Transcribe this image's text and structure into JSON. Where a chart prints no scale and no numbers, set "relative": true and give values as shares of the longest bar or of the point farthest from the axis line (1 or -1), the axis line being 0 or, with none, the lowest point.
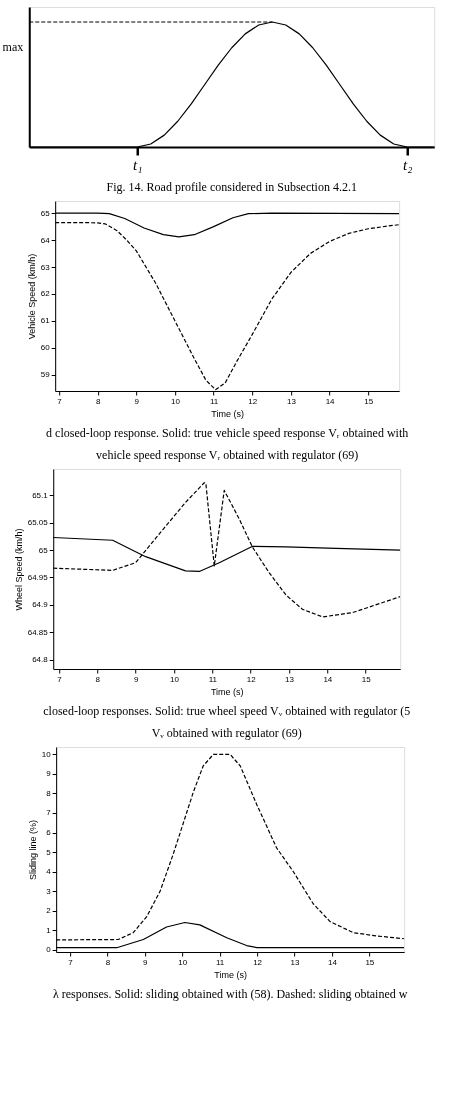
{
  "chart_data": [
    {
      "type": "line",
      "relative": true,
      "categories": [
        null,
        null,
        null,
        null,
        null,
        null,
        null,
        null,
        "t₁",
        null,
        null,
        null,
        null,
        null,
        null,
        null,
        null,
        null,
        null,
        null,
        null,
        null,
        null,
        null,
        null,
        null,
        null,
        null,
        "t₂",
        null,
        null
      ],
      "series": [
        {
          "color": "#000000",
          "line_style": "solid",
          "values": [
            0,
            0,
            0,
            0,
            0,
            0,
            0,
            0,
            0,
            0.024,
            0.095,
            0.206,
            0.345,
            0.5,
            0.655,
            0.794,
            0.905,
            0.976,
            1,
            0.976,
            0.905,
            0.794,
            0.655,
            0.5,
            0.345,
            0.206,
            0.095,
            0.024,
            0,
            0,
            0
          ]
        }
      ],
      "ref_lines": [
        {
          "axis": "y",
          "value": 1,
          "label": "max",
          "line_style": "dashed"
        }
      ],
      "annotations": [
        "Fig. 14. Road profile considered in Subsection 4.2.1"
      ],
      "grid": false
    },
    {
      "type": "line",
      "xlabel": "Time (s)",
      "ylabel": "Vehicle Speed (km/h)",
      "xlim": [
        6.9,
        15.8
      ],
      "ylim": [
        58.4,
        65.45
      ],
      "xticks": [
        7,
        8,
        9,
        10,
        11,
        12,
        13,
        14,
        15
      ],
      "yticks": [
        59,
        60,
        61,
        62,
        63,
        64,
        65
      ],
      "series": [
        {
          "color": "#000000",
          "line_style": "solid",
          "x": [
            6.9,
            8.0,
            8.3,
            8.7,
            9.2,
            9.7,
            10.1,
            10.5,
            11.0,
            11.5,
            11.9,
            12.5,
            15.8
          ],
          "values": [
            65.0,
            65.0,
            64.98,
            64.8,
            64.45,
            64.2,
            64.12,
            64.2,
            64.5,
            64.83,
            64.98,
            65.0,
            64.98
          ]
        },
        {
          "color": "#000000",
          "line_style": "dashed",
          "x": [
            6.9,
            7.5,
            8.0,
            8.2,
            8.5,
            8.75,
            9.0,
            9.5,
            10.0,
            10.5,
            10.8,
            11.05,
            11.3,
            11.6,
            12.0,
            12.5,
            13.0,
            13.5,
            14.0,
            14.5,
            15.0,
            15.5,
            15.8
          ],
          "values": [
            64.65,
            64.65,
            64.64,
            64.6,
            64.35,
            64.0,
            63.6,
            62.4,
            61.0,
            59.6,
            58.8,
            58.45,
            58.7,
            59.5,
            60.5,
            61.8,
            62.8,
            63.5,
            63.95,
            64.25,
            64.42,
            64.52,
            64.57
          ]
        }
      ],
      "annotations": [
        "d closed-loop response. Solid: true vehicle speed response Vᵣ obtained with",
        "vehicle speed response Vᵣ obtained with regulator (69)"
      ],
      "grid": false
    },
    {
      "type": "line",
      "xlabel": "Time (s)",
      "ylabel": "Wheel Speed (km/h)",
      "xlim": [
        6.85,
        15.9
      ],
      "ylim": [
        64.783,
        65.148
      ],
      "xticks": [
        7,
        8,
        9,
        10,
        11,
        12,
        13,
        14,
        15
      ],
      "yticks": [
        64.8,
        64.85,
        64.9,
        64.95,
        65,
        65.05,
        65.1
      ],
      "series": [
        {
          "color": "#000000",
          "line_style": "solid",
          "x": [
            6.85,
            8.4,
            9.26,
            10.3,
            10.66,
            11.18,
            12.05,
            12.92,
            14.23,
            15.9
          ],
          "values": [
            65.023,
            65.018,
            64.988,
            64.962,
            64.961,
            64.977,
            65.007,
            65.006,
            65.003,
            65.0
          ]
        },
        {
          "color": "#000000",
          "line_style": "dashed",
          "x": [
            6.85,
            8.4,
            9.0,
            9.61,
            10.3,
            10.79,
            10.83,
            11.05,
            11.31,
            11.7,
            12.05,
            12.48,
            12.92,
            13.35,
            13.88,
            14.66,
            15.9
          ],
          "values": [
            64.967,
            64.963,
            64.977,
            65.029,
            65.087,
            65.123,
            65.122,
            64.971,
            65.109,
            65.057,
            65.005,
            64.959,
            64.918,
            64.892,
            64.878,
            64.886,
            64.915
          ]
        }
      ],
      "annotations": [
        "closed-loop responses. Solid: true wheel speed Vᵥ obtained with regulator (5",
        "Vᵥ obtained with regulator (69)"
      ],
      "grid": false
    },
    {
      "type": "line",
      "xlabel": "Time (s)",
      "ylabel": "Sliding line (%)",
      "xlim": [
        6.63,
        15.93
      ],
      "ylim": [
        -0.12,
        10.38
      ],
      "xticks": [
        7,
        8,
        9,
        10,
        11,
        12,
        13,
        14,
        15
      ],
      "yticks": [
        0,
        1,
        2,
        3,
        4,
        5,
        6,
        7,
        8,
        9,
        10
      ],
      "series": [
        {
          "color": "#000000",
          "line_style": "solid",
          "x": [
            6.63,
            8.25,
            8.96,
            9.58,
            10.07,
            10.47,
            11.19,
            11.72,
            12.0,
            15.93
          ],
          "values": [
            0.1,
            0.1,
            0.52,
            1.16,
            1.39,
            1.27,
            0.61,
            0.21,
            0.1,
            0.1
          ]
        },
        {
          "color": "#000000",
          "line_style": "dashed",
          "x": [
            6.63,
            8.29,
            8.69,
            9.05,
            9.41,
            9.76,
            10.3,
            10.56,
            10.83,
            11.28,
            11.55,
            11.99,
            12.52,
            12.97,
            13.5,
            13.95,
            14.57,
            15.2,
            15.93
          ],
          "values": [
            0.5,
            0.52,
            0.87,
            1.69,
            3.0,
            4.9,
            8.09,
            9.41,
            10,
            10,
            9.41,
            7.44,
            5.22,
            3.99,
            2.35,
            1.44,
            0.87,
            0.7,
            0.56
          ]
        }
      ],
      "annotations": [
        "λ responses. Solid: sliding obtained with (58). Dashed: sliding obtained w"
      ],
      "grid": false
    }
  ]
}
